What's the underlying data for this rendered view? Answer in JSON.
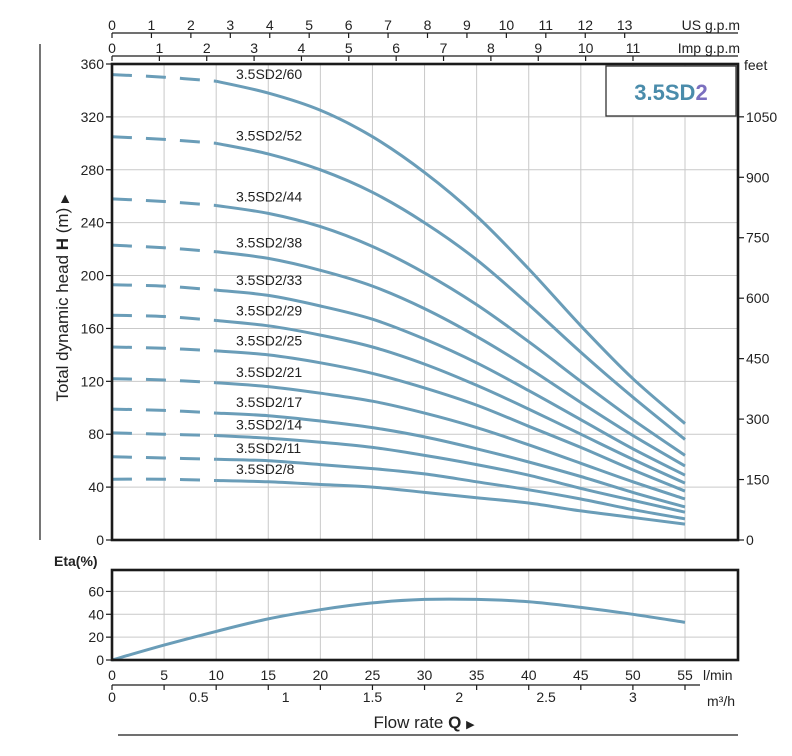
{
  "chart_data": [
    {
      "type": "line",
      "title_box": {
        "prefix": "3.5SD",
        "suffix": "2"
      },
      "ylabel": "Total dynamic head",
      "ylabel_symbol": "H",
      "ylabel_unit": "(m)",
      "ylim": [
        0,
        360
      ],
      "y_ticks": [
        "0",
        "40",
        "80",
        "120",
        "160",
        "200",
        "240",
        "280",
        "320",
        "360"
      ],
      "y2_unit": "feet",
      "y2_ticks": [
        {
          "value": 0,
          "label": "0"
        },
        {
          "value": 150,
          "label": "150"
        },
        {
          "value": 300,
          "label": "300"
        },
        {
          "value": 450,
          "label": "450"
        },
        {
          "value": 600,
          "label": "600"
        },
        {
          "value": 750,
          "label": "750"
        },
        {
          "value": 900,
          "label": "900"
        },
        {
          "value": 1050,
          "label": "1050"
        }
      ],
      "x_top_us": {
        "unit": "US g.p.m",
        "ticks": [
          "0",
          "1",
          "2",
          "3",
          "4",
          "5",
          "6",
          "7",
          "8",
          "9",
          "10",
          "11",
          "12",
          "13"
        ]
      },
      "x_top_imp": {
        "unit": "Imp g.p.m",
        "ticks": [
          "0",
          "1",
          "2",
          "3",
          "4",
          "5",
          "6",
          "7",
          "8",
          "9",
          "10",
          "11"
        ]
      },
      "xlim_lmin": [
        0,
        55
      ],
      "dashed_until_lmin": 10,
      "series": [
        {
          "name": "3.5SD2/60",
          "x": [
            0,
            5,
            10,
            15,
            20,
            25,
            30,
            35,
            40,
            45,
            50,
            55
          ],
          "y": [
            352,
            350,
            347,
            338,
            325,
            305,
            278,
            245,
            205,
            162,
            122,
            88
          ]
        },
        {
          "name": "3.5SD2/52",
          "x": [
            0,
            5,
            10,
            15,
            20,
            25,
            30,
            35,
            40,
            45,
            50,
            55
          ],
          "y": [
            305,
            303,
            300,
            292,
            280,
            263,
            240,
            212,
            178,
            142,
            108,
            76
          ]
        },
        {
          "name": "3.5SD2/44",
          "x": [
            0,
            5,
            10,
            15,
            20,
            25,
            30,
            35,
            40,
            45,
            50,
            55
          ],
          "y": [
            258,
            256,
            253,
            247,
            237,
            222,
            202,
            178,
            150,
            120,
            91,
            64
          ]
        },
        {
          "name": "3.5SD2/38",
          "x": [
            0,
            5,
            10,
            15,
            20,
            25,
            30,
            35,
            40,
            45,
            50,
            55
          ],
          "y": [
            223,
            221,
            218,
            213,
            204,
            192,
            175,
            154,
            130,
            104,
            79,
            56
          ]
        },
        {
          "name": "3.5SD2/33",
          "x": [
            0,
            5,
            10,
            15,
            20,
            25,
            30,
            35,
            40,
            45,
            50,
            55
          ],
          "y": [
            193,
            192,
            189,
            185,
            177,
            167,
            152,
            134,
            113,
            91,
            69,
            49
          ]
        },
        {
          "name": "3.5SD2/29",
          "x": [
            0,
            5,
            10,
            15,
            20,
            25,
            30,
            35,
            40,
            45,
            50,
            55
          ],
          "y": [
            170,
            169,
            166,
            162,
            155,
            146,
            133,
            117,
            99,
            80,
            61,
            43
          ]
        },
        {
          "name": "3.5SD2/25",
          "x": [
            0,
            5,
            10,
            15,
            20,
            25,
            30,
            35,
            40,
            45,
            50,
            55
          ],
          "y": [
            146,
            145,
            143,
            140,
            134,
            126,
            115,
            102,
            86,
            70,
            53,
            37
          ]
        },
        {
          "name": "3.5SD2/21",
          "x": [
            0,
            5,
            10,
            15,
            20,
            25,
            30,
            35,
            40,
            45,
            50,
            55
          ],
          "y": [
            122,
            121,
            119,
            116,
            111,
            105,
            96,
            85,
            72,
            58,
            44,
            31
          ]
        },
        {
          "name": "3.5SD2/17",
          "x": [
            0,
            5,
            10,
            15,
            20,
            25,
            30,
            35,
            40,
            45,
            50,
            55
          ],
          "y": [
            99,
            98,
            96,
            94,
            90,
            85,
            78,
            69,
            59,
            48,
            36,
            25
          ]
        },
        {
          "name": "3.5SD2/14",
          "x": [
            0,
            5,
            10,
            15,
            20,
            25,
            30,
            35,
            40,
            45,
            50,
            55
          ],
          "y": [
            81,
            80,
            79,
            77,
            74,
            70,
            64,
            57,
            49,
            39,
            30,
            21
          ]
        },
        {
          "name": "3.5SD2/11",
          "x": [
            0,
            5,
            10,
            15,
            20,
            25,
            30,
            35,
            40,
            45,
            50,
            55
          ],
          "y": [
            63,
            62,
            61,
            60,
            57,
            54,
            50,
            44,
            38,
            31,
            23,
            16
          ]
        },
        {
          "name": "3.5SD2/8",
          "x": [
            0,
            5,
            10,
            15,
            20,
            25,
            30,
            35,
            40,
            45,
            50,
            55
          ],
          "y": [
            46,
            46,
            45,
            44,
            42,
            40,
            36,
            32,
            28,
            22,
            17,
            12
          ]
        }
      ]
    },
    {
      "type": "line",
      "ylabel": "Eta(%)",
      "ylim": [
        0,
        70
      ],
      "y_ticks": [
        "0",
        "20",
        "40",
        "60"
      ],
      "xlim": [
        0,
        55
      ],
      "x_ticks": [
        "0",
        "5",
        "10",
        "15",
        "20",
        "25",
        "30",
        "35",
        "40",
        "45",
        "50",
        "55"
      ],
      "x_unit": "l/min",
      "x2_ticks": [
        {
          "value": 0,
          "label": "0"
        },
        {
          "value": 0.5,
          "label": "0.5"
        },
        {
          "value": 1,
          "label": "1"
        },
        {
          "value": 1.5,
          "label": "1.5"
        },
        {
          "value": 2,
          "label": "2"
        },
        {
          "value": 2.5,
          "label": "2.5"
        },
        {
          "value": 3,
          "label": "3"
        }
      ],
      "x2_unit": "m³/h",
      "xlabel": "Flow  rate",
      "xlabel_symbol": "Q",
      "series": [
        {
          "x": [
            0,
            5,
            10,
            15,
            20,
            25,
            30,
            35,
            40,
            45,
            50,
            55
          ],
          "y": [
            0,
            13,
            25,
            36,
            44,
            50,
            53,
            53,
            51,
            46,
            40,
            33
          ]
        }
      ]
    }
  ],
  "colors": {
    "curve": "#6a9db8",
    "frame": "#1a1a1a",
    "grid": "#c9c9c9",
    "title": "#4a8cab",
    "title_accent": "#7b6fbf"
  }
}
